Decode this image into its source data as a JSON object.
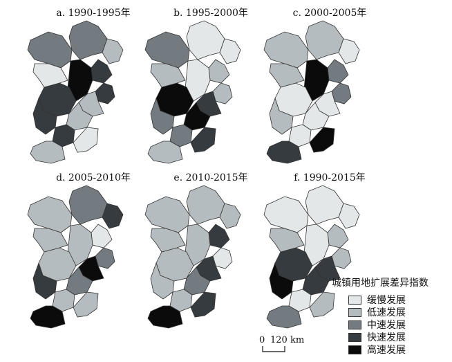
{
  "panels": [
    {
      "title": "a. 1990-1995年",
      "classes": [
        "mid",
        "light",
        "fast",
        "top",
        "mid",
        "fast",
        "fast",
        "slow",
        "light",
        "light",
        "fast",
        "fast",
        "light",
        "slow"
      ]
    },
    {
      "title": "b. 1995-2000年",
      "classes": [
        "slow",
        "slow",
        "light",
        "slow",
        "mid",
        "light",
        "top",
        "light",
        "fast",
        "top",
        "mid",
        "mid",
        "light",
        "fast"
      ]
    },
    {
      "title": "c. 2000-2005年",
      "classes": [
        "light",
        "slow",
        "mid",
        "top",
        "light",
        "mid",
        "slow",
        "light",
        "slow",
        "slow",
        "light",
        "slow",
        "fast",
        "top"
      ]
    },
    {
      "title": "d. 2005-2010年",
      "classes": [
        "mid",
        "fast",
        "slow",
        "light",
        "light",
        "mid",
        "light",
        "light",
        "top",
        "mid",
        "fast",
        "light",
        "top",
        "light"
      ]
    },
    {
      "title": "e. 2010-2015年",
      "classes": [
        "light",
        "light",
        "fast",
        "light",
        "light",
        "slow",
        "light",
        "light",
        "fast",
        "mid",
        "light",
        "light",
        "top",
        "fast"
      ]
    },
    {
      "title": "f. 1990-2015年",
      "classes": [
        "slow",
        "slow",
        "light",
        "slow",
        "slow",
        "light",
        "fast",
        "light",
        "fast",
        "fast",
        "top",
        "slow",
        "mid",
        "light"
      ]
    }
  ],
  "legend": {
    "title": "城镇用地扩展差异指数",
    "items": [
      {
        "key": "slow",
        "label": "缓慢发展",
        "color": "#e3e7e7"
      },
      {
        "key": "light",
        "label": "低速发展",
        "color": "#b4bcbf"
      },
      {
        "key": "mid",
        "label": "中速发展",
        "color": "#737b80"
      },
      {
        "key": "fast",
        "label": "快速发展",
        "color": "#363b40"
      },
      {
        "key": "top",
        "label": "高速发展",
        "color": "#0b0b0b"
      }
    ]
  },
  "scale": {
    "zero": "0",
    "distance": "120",
    "unit": "km"
  }
}
